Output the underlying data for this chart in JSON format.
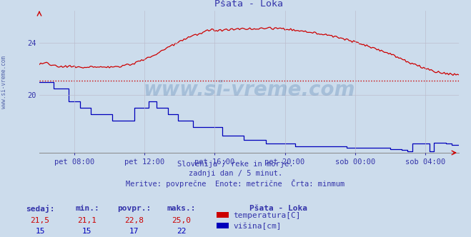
{
  "title": "Pšata - Loka",
  "bg_color": "#ccdcec",
  "plot_bg_color": "#ccdcec",
  "grid_color": "#bbbbcc",
  "text_color": "#3333aa",
  "temp_color": "#cc0000",
  "visina_color": "#0000bb",
  "dashed_line_color": "#cc0000",
  "dashed_line_value": 21.1,
  "xlim_start": 0,
  "xlim_end": 287,
  "ylim_min": 15.5,
  "ylim_max": 26.5,
  "yticks": [
    20,
    24
  ],
  "xtick_labels": [
    "pet 08:00",
    "pet 12:00",
    "pet 16:00",
    "pet 20:00",
    "sob 00:00",
    "sob 04:00"
  ],
  "xtick_positions": [
    24,
    72,
    120,
    168,
    216,
    264
  ],
  "subtitle_lines": [
    "Slovenija / reke in morje.",
    "zadnji dan / 5 minut.",
    "Meritve: povprečne  Enote: metrične  Črta: minmum"
  ],
  "legend_title": "Pšata - Loka",
  "legend_entries": [
    {
      "label": "temperatura[C]",
      "color": "#cc0000"
    },
    {
      "label": "višina[cm]",
      "color": "#0000bb"
    }
  ],
  "stats_headers": [
    "sedaj:",
    "min.:",
    "povpr.:",
    "maks.:"
  ],
  "stats_temp": [
    "21,5",
    "21,1",
    "22,8",
    "25,0"
  ],
  "stats_visina": [
    "15",
    "15",
    "17",
    "22"
  ],
  "watermark": "www.si-vreme.com"
}
